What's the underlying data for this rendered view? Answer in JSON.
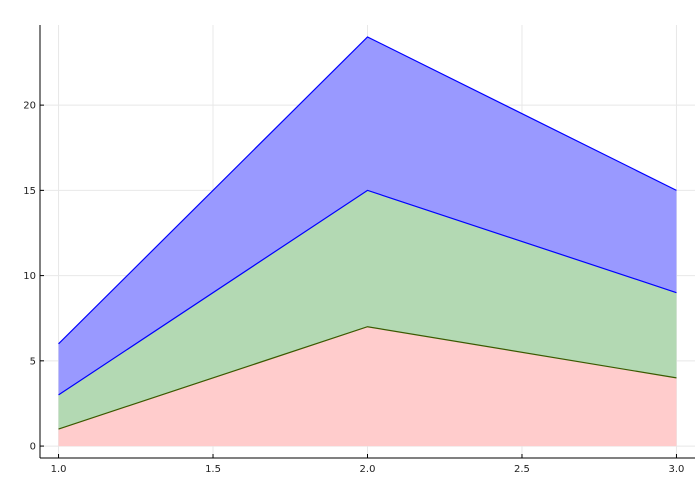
{
  "chart_data": {
    "type": "area",
    "stacked": true,
    "x": [
      1.0,
      2.0,
      3.0
    ],
    "series": [
      {
        "values": [
          1,
          7,
          4
        ],
        "cumulative": [
          1,
          7,
          4
        ],
        "fill": "#ffcccc",
        "line": "#3a5a00"
      },
      {
        "values": [
          2,
          8,
          5
        ],
        "cumulative": [
          3,
          15,
          9
        ],
        "fill": "#b3d9b3",
        "line": "#0000ff"
      },
      {
        "values": [
          3,
          9,
          6
        ],
        "cumulative": [
          6,
          24,
          15
        ],
        "fill": "#9999ff",
        "line": "#0000ff"
      }
    ],
    "xticks": [
      "1.0",
      "1.5",
      "2.0",
      "2.5",
      "3.0"
    ],
    "xtick_values": [
      1.0,
      1.5,
      2.0,
      2.5,
      3.0
    ],
    "yticks": [
      "0",
      "5",
      "10",
      "15",
      "20"
    ],
    "ytick_values": [
      0,
      5,
      10,
      15,
      20
    ],
    "xlim": [
      0.94,
      3.06
    ],
    "ylim": [
      -0.7,
      24.7
    ],
    "grid": true,
    "legend": "none",
    "title": "",
    "xlabel": "",
    "ylabel": ""
  }
}
